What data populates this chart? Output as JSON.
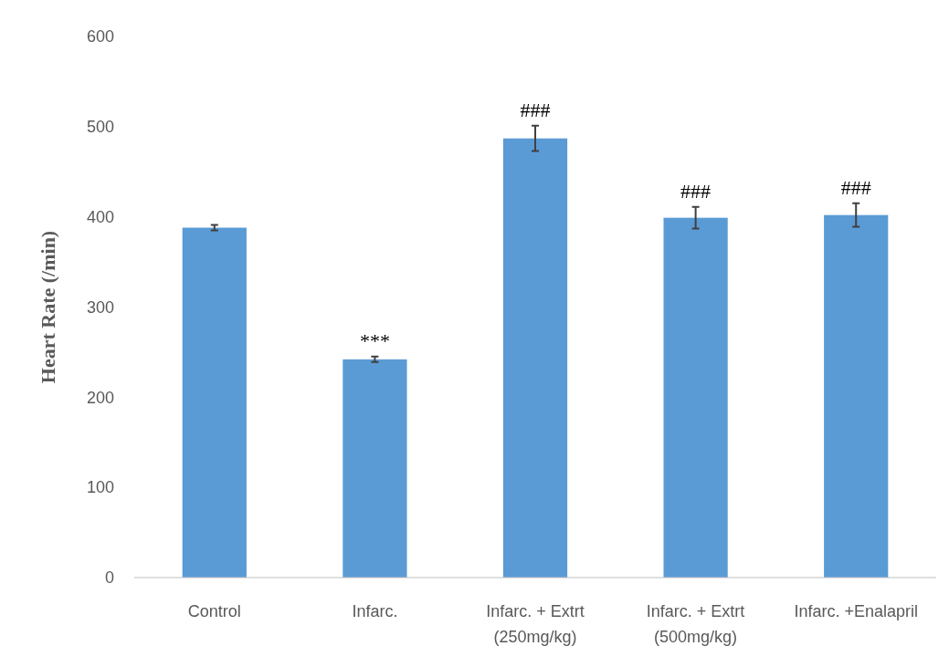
{
  "chart_data": {
    "type": "bar",
    "ylabel": "Heart Rate (/min)",
    "categories": [
      "Control",
      "Infarc.",
      "Infarc. + Extrt\n(250mg/kg)",
      "Infarc. + Extrt\n(500mg/kg)",
      "Infarc. +Enalapril"
    ],
    "values": [
      388,
      242,
      487,
      399,
      402
    ],
    "errors": [
      3,
      3,
      14,
      12,
      13
    ],
    "color": "#5b9bd5",
    "ylim": [
      0,
      600
    ],
    "yticks": [
      0,
      100,
      200,
      300,
      400,
      500,
      600
    ],
    "grid": false,
    "annotations": [
      {
        "text": "***",
        "x": "Infarc.",
        "y": 245
      },
      {
        "text": "###",
        "x": "Infarc. + Extrt\n(250mg/kg)",
        "y": 501
      },
      {
        "text": "###",
        "x": "Infarc. + Extrt\n(500mg/kg)",
        "y": 411
      },
      {
        "text": "###",
        "x": "Infarc. +Enalapril",
        "y": 415
      }
    ]
  }
}
